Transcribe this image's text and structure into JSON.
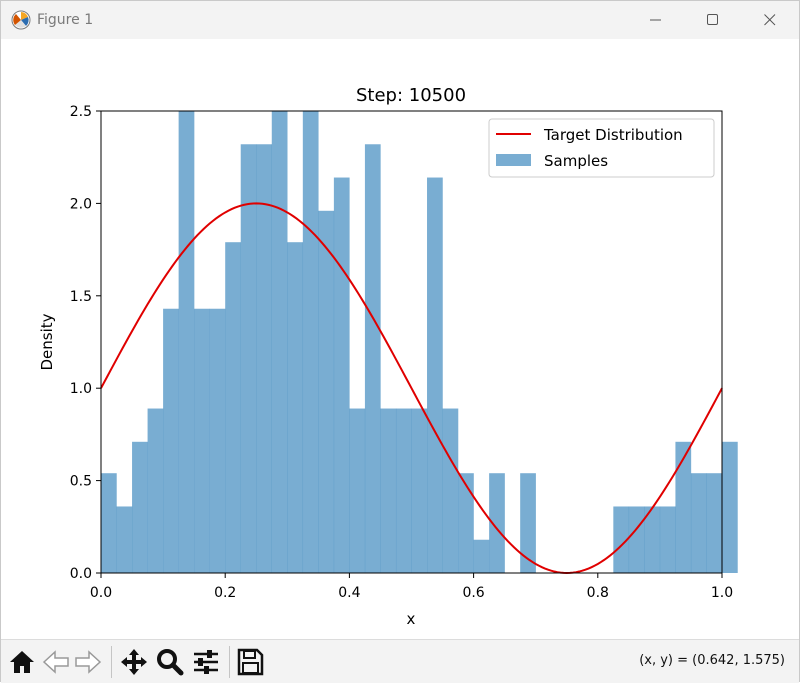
{
  "window": {
    "title": "Figure 1",
    "app_icon": "matplotlib-icon",
    "controls": [
      "minimize-icon",
      "maximize-icon",
      "close-icon"
    ]
  },
  "chart_data": {
    "type": "bar",
    "title": "Step: 10500",
    "xlabel": "x",
    "ylabel": "Density",
    "xlim": [
      0.0,
      1.0
    ],
    "ylim": [
      0.0,
      2.5
    ],
    "xticks": [
      "0.0",
      "0.2",
      "0.4",
      "0.6",
      "0.8",
      "1.0"
    ],
    "yticks": [
      "0.0",
      "0.5",
      "1.0",
      "1.5",
      "2.0",
      "2.5"
    ],
    "grid": false,
    "legend": {
      "placement": "top-right",
      "entries": [
        "Target Distribution",
        "Samples"
      ]
    },
    "histogram": {
      "name": "Samples",
      "color": "#1f77b4",
      "bin_start": 0.0,
      "bin_width": 0.025,
      "values": [
        0.54,
        0.36,
        0.71,
        0.89,
        1.43,
        2.5,
        1.43,
        1.43,
        1.79,
        2.32,
        2.32,
        2.5,
        1.79,
        2.5,
        1.96,
        2.14,
        0.89,
        2.32,
        0.89,
        0.89,
        0.89,
        2.14,
        0.89,
        0.54,
        0.18,
        0.54,
        0.0,
        0.54,
        0.0,
        0.0,
        0.0,
        0.0,
        0.0,
        0.36,
        0.36,
        0.36,
        0.36,
        0.71,
        0.54,
        0.54,
        0.71
      ]
    },
    "series": [
      {
        "name": "Target Distribution",
        "color": "#e00000",
        "function": "1 + sin(2*pi*x)"
      }
    ]
  },
  "toolbar": {
    "tools": [
      {
        "name": "home-icon"
      },
      {
        "name": "back-icon"
      },
      {
        "name": "forward-icon"
      },
      {
        "name": "pan-icon"
      },
      {
        "name": "zoom-icon"
      },
      {
        "name": "configure-subplots-icon"
      },
      {
        "name": "save-icon"
      }
    ],
    "coords_text": "(x, y) = (0.642, 1.575)"
  }
}
